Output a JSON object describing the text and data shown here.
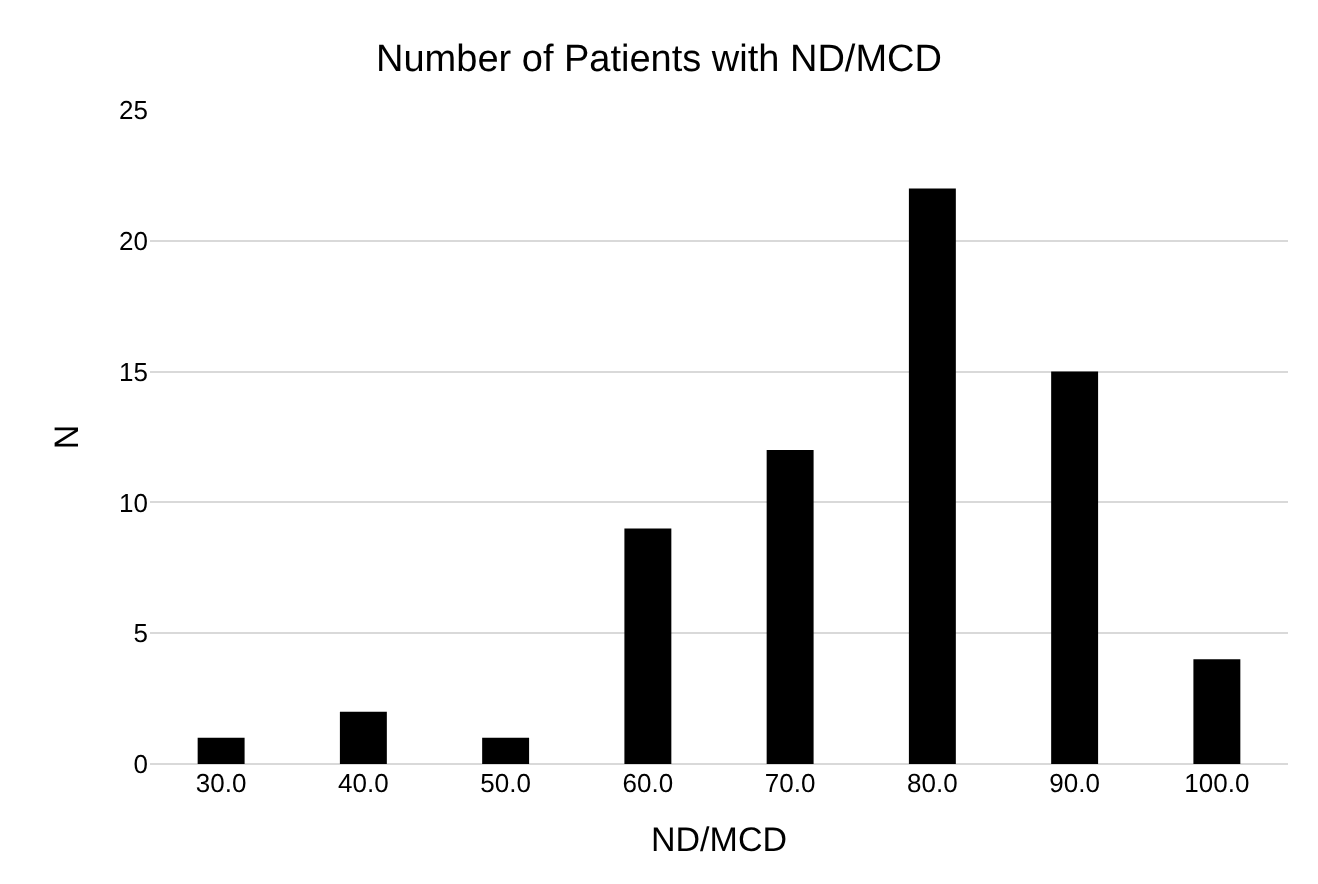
{
  "chart_data": {
    "type": "bar",
    "title": "Number of Patients with ND/MCD",
    "xlabel": "ND/MCD",
    "ylabel": "N",
    "categories": [
      "30.0",
      "40.0",
      "50.0",
      "60.0",
      "70.0",
      "80.0",
      "90.0",
      "100.0"
    ],
    "values": [
      1,
      2,
      1,
      9,
      12,
      22,
      15,
      4
    ],
    "color": "#000000",
    "ylim": [
      0,
      25
    ],
    "yticks": [
      0,
      5,
      10,
      15,
      20,
      25
    ],
    "grid": "y"
  }
}
